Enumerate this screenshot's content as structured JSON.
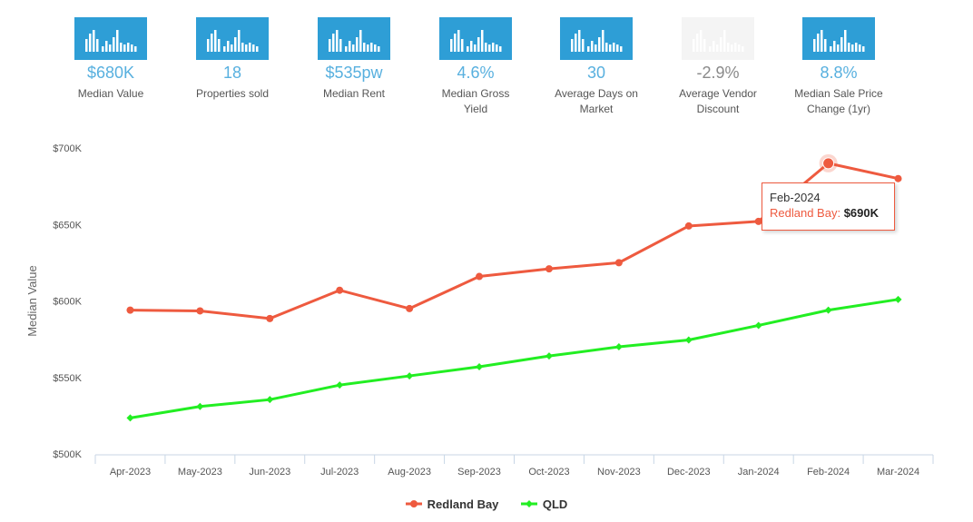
{
  "stats": [
    {
      "value": "$680K",
      "label_lines": [
        "Median Value"
      ],
      "muted": false
    },
    {
      "value": "18",
      "label_lines": [
        "Properties sold"
      ],
      "muted": false
    },
    {
      "value": "$535pw",
      "label_lines": [
        "Median Rent"
      ],
      "muted": false
    },
    {
      "value": "4.6%",
      "label_lines": [
        "Median Gross",
        "Yield"
      ],
      "muted": false
    },
    {
      "value": "30",
      "label_lines": [
        "Average Days on",
        "Market"
      ],
      "muted": false
    },
    {
      "value": "-2.9%",
      "label_lines": [
        "Average Vendor",
        "Discount"
      ],
      "muted": true
    },
    {
      "value": "8.8%",
      "label_lines": [
        "Median Sale Price",
        "Change (1yr)"
      ],
      "muted": false
    }
  ],
  "colors": {
    "redland_bay": "#ee5a3f",
    "qld": "#22ee22",
    "stat_tile": "#2e9ed6",
    "stat_value": "#58b0df"
  },
  "chart_data": {
    "type": "line",
    "title": "",
    "xlabel": "",
    "ylabel": "Median Value",
    "categories": [
      "Apr-2023",
      "May-2023",
      "Jun-2023",
      "Jul-2023",
      "Aug-2023",
      "Sep-2023",
      "Oct-2023",
      "Nov-2023",
      "Dec-2023",
      "Jan-2024",
      "Feb-2024",
      "Mar-2024"
    ],
    "ylim": [
      500000,
      700000
    ],
    "yticks": [
      500000,
      550000,
      600000,
      650000,
      700000
    ],
    "ytick_labels": [
      "$500K",
      "$550K",
      "$600K",
      "$650K",
      "$700K"
    ],
    "grid": false,
    "legend_position": "bottom-center",
    "series": [
      {
        "name": "Redland Bay",
        "color": "#ee5a3f",
        "marker": "circle",
        "values": [
          594000,
          593500,
          588500,
          607000,
          595000,
          616000,
          621000,
          625000,
          649000,
          652000,
          690000,
          680000
        ]
      },
      {
        "name": "QLD",
        "color": "#22ee22",
        "marker": "diamond",
        "values": [
          523500,
          531000,
          535500,
          545000,
          551000,
          557000,
          564000,
          570000,
          574500,
          584000,
          594000,
          601000
        ]
      }
    ]
  },
  "tooltip": {
    "date": "Feb-2024",
    "series_label": "Redland Bay:",
    "value": "$690K",
    "series_index": 0,
    "point_index": 10
  }
}
